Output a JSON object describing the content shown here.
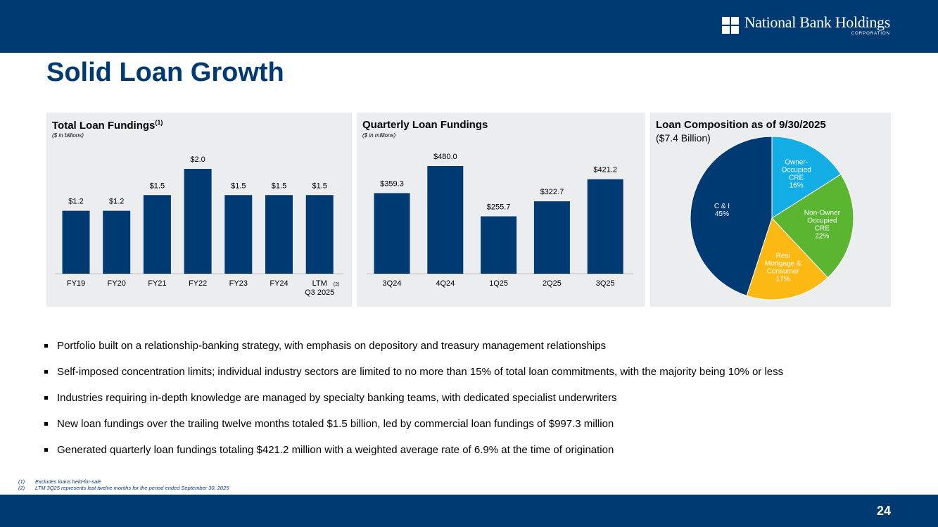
{
  "header": {
    "logo_name": "National Bank Holdings",
    "logo_sub": "CORPORATION"
  },
  "page_title": "Solid Loan Growth",
  "chart_data": [
    {
      "type": "bar",
      "title": "Total Loan Fundings",
      "title_sup": "(1)",
      "subtitle": "($ in billions)",
      "categories": [
        "FY19",
        "FY20",
        "FY21",
        "FY22",
        "FY23",
        "FY24",
        "LTM"
      ],
      "category_notes": [
        "",
        "",
        "",
        "",
        "",
        "",
        "Q3 2025"
      ],
      "category_sup": [
        "",
        "",
        "",
        "",
        "",
        "",
        "(2)"
      ],
      "values": [
        1.2,
        1.2,
        1.5,
        2.0,
        1.5,
        1.5,
        1.5
      ],
      "value_labels": [
        "$1.2",
        "$1.2",
        "$1.5",
        "$2.0",
        "$1.5",
        "$1.5",
        "$1.5"
      ],
      "ylim": [
        0,
        2.0
      ],
      "color": "#003a73"
    },
    {
      "type": "bar",
      "title": "Quarterly Loan Fundings",
      "subtitle": "($ in millions)",
      "categories": [
        "3Q24",
        "4Q24",
        "1Q25",
        "2Q25",
        "3Q25"
      ],
      "values": [
        359.3,
        480.0,
        255.7,
        322.7,
        421.2
      ],
      "value_labels": [
        "$359.3",
        "$480.0",
        "$255.7",
        "$322.7",
        "$421.2"
      ],
      "ylim": [
        0,
        480
      ],
      "color": "#003a73"
    },
    {
      "type": "pie",
      "title": "Loan Composition as of 9/30/2025",
      "subtitle": "($7.4 Billion)",
      "slices": [
        {
          "label_lines": [
            "Owner-",
            "Occupied",
            "CRE",
            "16%"
          ],
          "value": 16,
          "color": "#14aee6"
        },
        {
          "label_lines": [
            "Non-Owner",
            "Occupied",
            "CRE",
            "22%"
          ],
          "value": 22,
          "color": "#5ab631"
        },
        {
          "label_lines": [
            "Resi",
            "Mortgage &",
            "Consumer",
            "17%"
          ],
          "value": 17,
          "color": "#fdb913"
        },
        {
          "label_lines": [
            "C & I",
            "45%"
          ],
          "value": 45,
          "color": "#003a73"
        }
      ]
    }
  ],
  "bullets": [
    "Portfolio built on a relationship-banking strategy, with emphasis on depository and treasury management relationships",
    "Self-imposed concentration limits; individual industry sectors are limited to no more than 15% of total loan commitments, with the majority being 10% or less",
    "Industries requiring in-depth knowledge are managed by specialty banking teams, with dedicated specialist underwriters",
    "New loan fundings over the trailing twelve months totaled $1.5 billion, led by commercial loan fundings of $997.3 million",
    "Generated quarterly loan fundings totaling $421.2 million with a weighted average rate of 6.9% at the time of origination"
  ],
  "footnotes": [
    {
      "num": "(1)",
      "text": "Excludes loans held-for-sale"
    },
    {
      "num": "(2)",
      "text": "LTM 3Q25 represents last twelve months for the period ended September 30, 2025"
    }
  ],
  "page_number": "24"
}
